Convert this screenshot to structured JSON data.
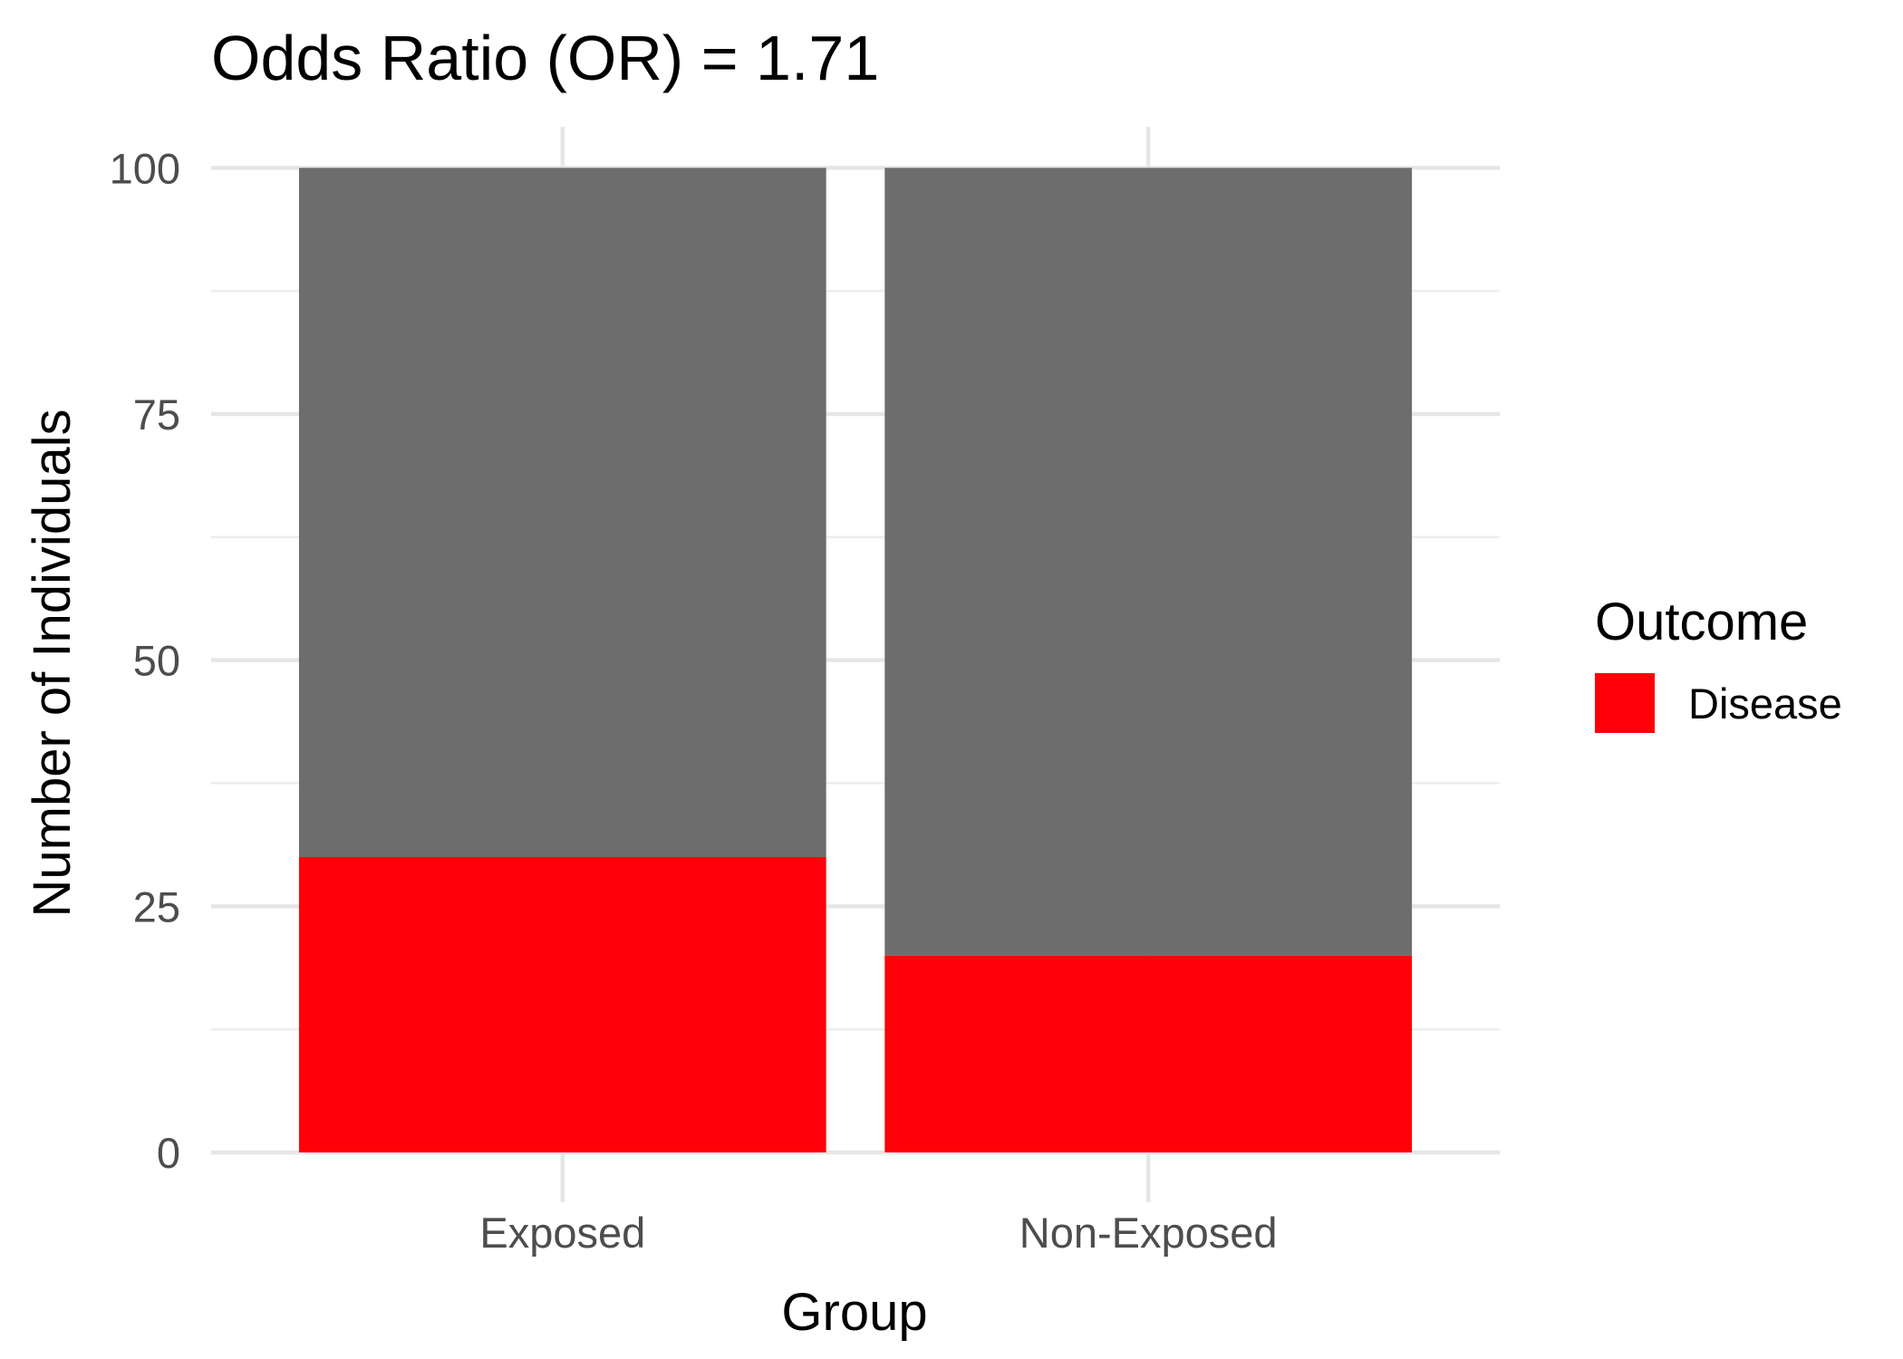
{
  "chart_data": {
    "type": "bar",
    "stacked": true,
    "title": "Odds Ratio (OR) = 1.71",
    "xlabel": "Group",
    "ylabel": "Number of Individuals",
    "categories": [
      "Exposed",
      "Non-Exposed"
    ],
    "series": [
      {
        "name": "Disease",
        "values": [
          30,
          20
        ],
        "color": "#ff0008"
      },
      {
        "values": [
          70,
          80
        ],
        "color": "#6d6d6d"
      }
    ],
    "ylim": [
      0,
      100
    ],
    "yticks": [
      0,
      25,
      50,
      75,
      100
    ],
    "grid": true,
    "legend": {
      "title": "Outcome",
      "position": "right",
      "entries": [
        {
          "label": "Disease",
          "color": "#ff0008"
        }
      ]
    }
  }
}
